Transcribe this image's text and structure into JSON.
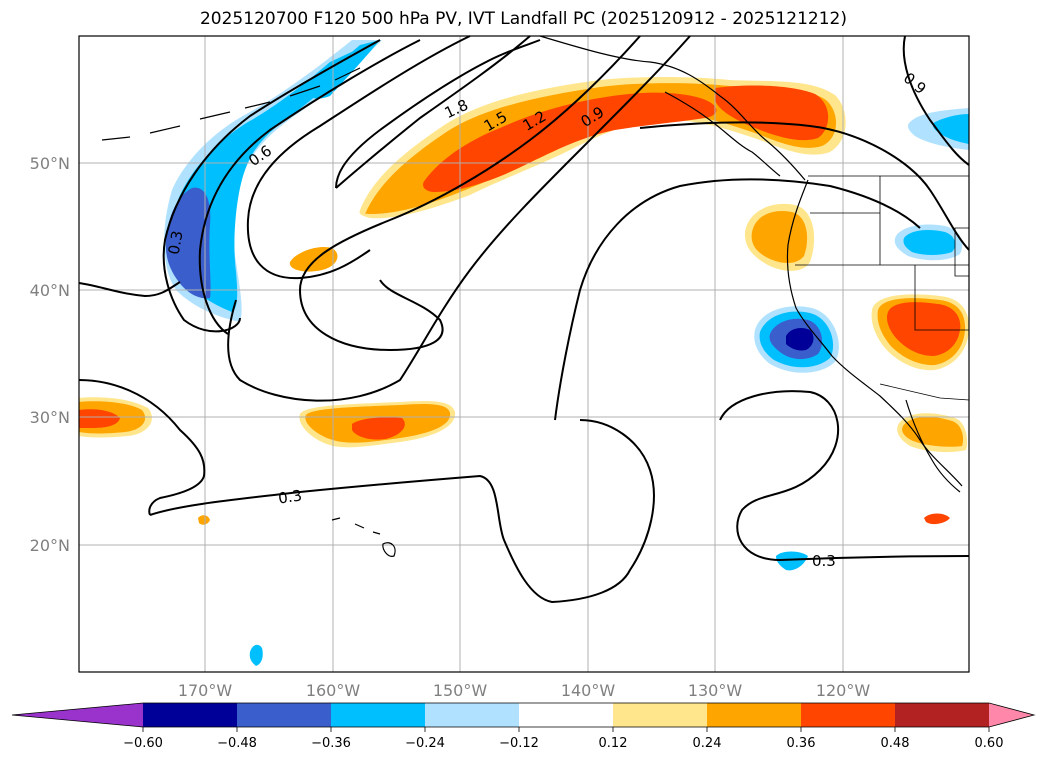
{
  "title": "2025120700 F120 500 hPa PV, IVT Landfall PC (2025120912 - 2025121212)",
  "latitude_labels": [
    "50°N",
    "40°N",
    "30°N",
    "20°N"
  ],
  "longitude_labels": [
    "170°W",
    "160°W",
    "150°W",
    "140°W",
    "130°W",
    "120°W"
  ],
  "contour_labels": [
    "0.3",
    "0.6",
    "1.8",
    "1.5",
    "1.2",
    "0.9",
    "0.9",
    "0.3",
    "0.3"
  ],
  "colorbar": {
    "tick_labels": [
      "−0.60",
      "−0.48",
      "−0.36",
      "−0.24",
      "−0.12",
      "0.12",
      "0.24",
      "0.36",
      "0.48",
      "0.60"
    ],
    "colors": [
      "#9933cc",
      "#000099",
      "#3a5fcd",
      "#00bfff",
      "#b0e2ff",
      "#ffffff",
      "#ffe68c",
      "#ffa500",
      "#ff4500",
      "#b22222",
      "#ff88aa"
    ]
  },
  "colors": {
    "neg_strong": "#000099",
    "neg_mid": "#3a5fcd",
    "neg_light": "#00bfff",
    "neg_faint": "#b0e2ff",
    "pos_faint": "#ffe68c",
    "pos_light": "#ffa500",
    "pos_mid": "#ff4500"
  }
}
